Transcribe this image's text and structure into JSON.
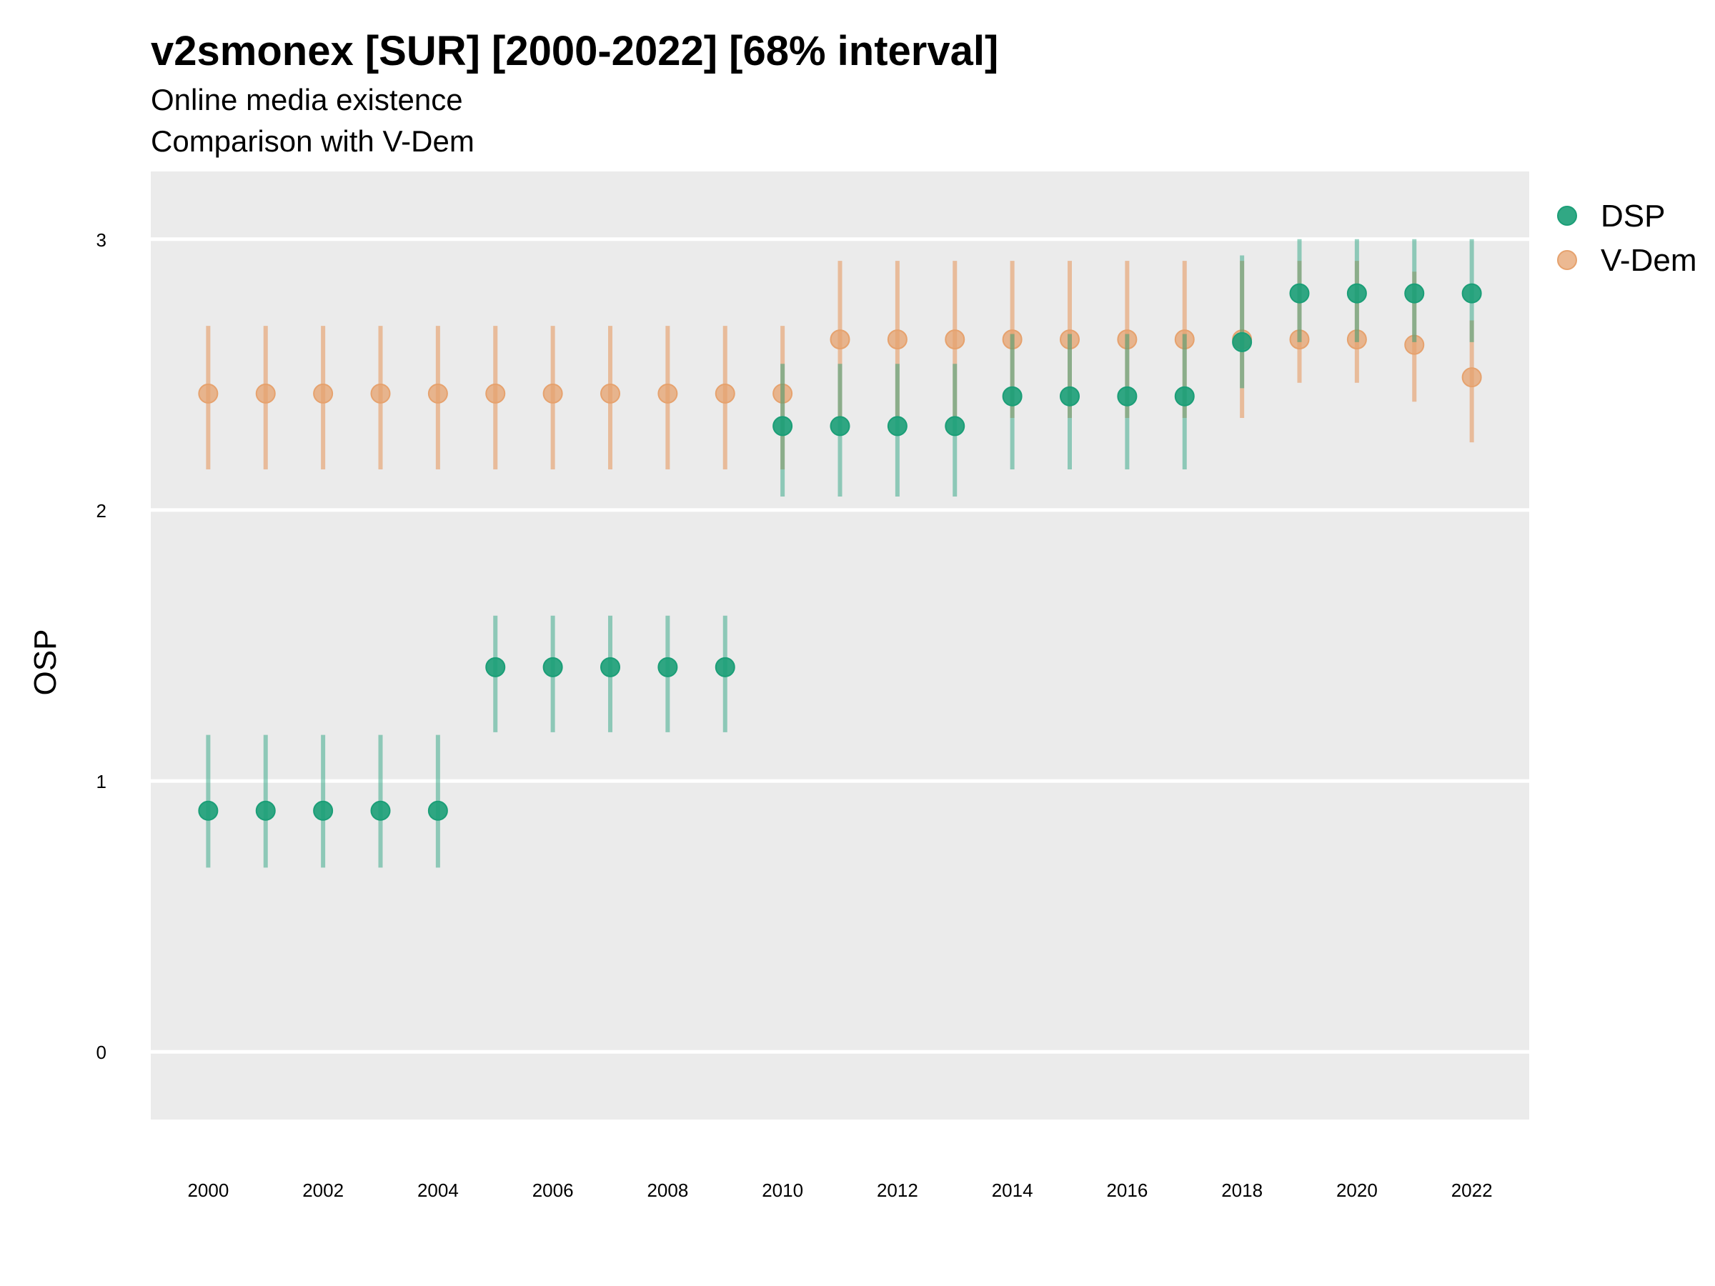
{
  "chart_data": {
    "type": "scatter",
    "title": "v2smonex [SUR] [2000-2022] [68% interval]",
    "subtitle": "Online media existence",
    "caption": "Comparison with V-Dem",
    "xlabel": "",
    "ylabel": "OSP",
    "xlim": [
      1999,
      2023
    ],
    "ylim": [
      -0.25,
      3.25
    ],
    "yticks": [
      0,
      1,
      2,
      3
    ],
    "xticks": [
      2000,
      2002,
      2004,
      2006,
      2008,
      2010,
      2012,
      2014,
      2016,
      2018,
      2020,
      2022
    ],
    "grid": true,
    "legend_position": "right",
    "colors": {
      "DSP": "#1b9e77",
      "V-Dem": "#e6a26e",
      "panel": "#ebebeb",
      "grid": "#ffffff"
    },
    "x": [
      2000,
      2001,
      2002,
      2003,
      2004,
      2005,
      2006,
      2007,
      2008,
      2009,
      2010,
      2011,
      2012,
      2013,
      2014,
      2015,
      2016,
      2017,
      2018,
      2019,
      2020,
      2021,
      2022
    ],
    "series": [
      {
        "name": "DSP",
        "values": [
          0.89,
          0.89,
          0.89,
          0.89,
          0.89,
          1.42,
          1.42,
          1.42,
          1.42,
          1.42,
          2.31,
          2.31,
          2.31,
          2.31,
          2.42,
          2.42,
          2.42,
          2.42,
          2.62,
          2.8,
          2.8,
          2.8,
          2.8
        ],
        "lower": [
          0.68,
          0.68,
          0.68,
          0.68,
          0.68,
          1.18,
          1.18,
          1.18,
          1.18,
          1.18,
          2.05,
          2.05,
          2.05,
          2.05,
          2.15,
          2.15,
          2.15,
          2.15,
          2.45,
          2.62,
          2.62,
          2.62,
          2.62
        ],
        "upper": [
          1.17,
          1.17,
          1.17,
          1.17,
          1.17,
          1.61,
          1.61,
          1.61,
          1.61,
          1.61,
          2.54,
          2.54,
          2.54,
          2.54,
          2.65,
          2.65,
          2.65,
          2.65,
          2.94,
          3.0,
          3.0,
          3.0,
          3.0
        ]
      },
      {
        "name": "V-Dem",
        "values": [
          2.43,
          2.43,
          2.43,
          2.43,
          2.43,
          2.43,
          2.43,
          2.43,
          2.43,
          2.43,
          2.43,
          2.63,
          2.63,
          2.63,
          2.63,
          2.63,
          2.63,
          2.63,
          2.63,
          2.63,
          2.63,
          2.61,
          2.49
        ],
        "lower": [
          2.15,
          2.15,
          2.15,
          2.15,
          2.15,
          2.15,
          2.15,
          2.15,
          2.15,
          2.15,
          2.15,
          2.34,
          2.34,
          2.34,
          2.34,
          2.34,
          2.34,
          2.34,
          2.34,
          2.47,
          2.47,
          2.4,
          2.25
        ],
        "upper": [
          2.68,
          2.68,
          2.68,
          2.68,
          2.68,
          2.68,
          2.68,
          2.68,
          2.68,
          2.68,
          2.68,
          2.92,
          2.92,
          2.92,
          2.92,
          2.92,
          2.92,
          2.92,
          2.92,
          2.92,
          2.92,
          2.88,
          2.7
        ]
      }
    ]
  }
}
